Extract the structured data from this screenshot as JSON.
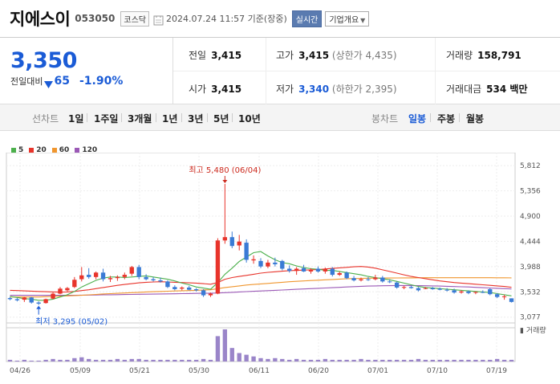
{
  "header": {
    "stock_name": "지에스이",
    "stock_code": "053050",
    "market": "코스닥",
    "timestamp": "2024.07.24 11:57 기준(장중)",
    "realtime_label": "실시간",
    "company_label": "기업개요"
  },
  "price": {
    "current": "3,350",
    "change_label": "전일대비",
    "change_value": "65",
    "change_pct": "-1.90%"
  },
  "stats": {
    "prev_close_label": "전일",
    "prev_close": "3,415",
    "high_label": "고가",
    "high": "3,415",
    "upper_limit": "(상한가 4,435)",
    "volume_label": "거래량",
    "volume": "158,791",
    "open_label": "시가",
    "open": "3,415",
    "low_label": "저가",
    "low": "3,340",
    "lower_limit": "(하한가 2,395)",
    "amount_label": "거래대금",
    "amount": "534 백만"
  },
  "periods": {
    "line_label": "선차트",
    "items": [
      "1일",
      "1주일",
      "3개월",
      "1년",
      "3년",
      "5년",
      "10년"
    ],
    "candle_label": "봉차트",
    "candle_items": [
      "일봉",
      "주봉",
      "월봉"
    ],
    "active_candle": "일봉"
  },
  "colors": {
    "up": "#e8342b",
    "down": "#3a7bd5",
    "ma5": "#4cb04c",
    "ma20": "#e8342b",
    "ma60": "#f0962e",
    "ma120": "#9b59b6"
  },
  "legend": [
    "5",
    "20",
    "60",
    "120"
  ],
  "chart_data": {
    "type": "candlestick",
    "x_ticks": [
      "04/26",
      "05/09",
      "05/21",
      "05/30",
      "06/11",
      "06/20",
      "07/01",
      "07/10",
      "07/19"
    ],
    "y_ticks": [
      "5,812",
      "5,356",
      "4,900",
      "4,444",
      "3,988",
      "3,532",
      "3,077"
    ],
    "ylim": [
      3000,
      5900
    ],
    "annotations": {
      "high": "최고 5,480 (06/04)",
      "low": "최저 3,295 (05/02)"
    },
    "volume_label": "거래량",
    "candles": [
      {
        "o": 3420,
        "h": 3440,
        "l": 3380,
        "c": 3400
      },
      {
        "o": 3400,
        "h": 3420,
        "l": 3360,
        "c": 3380
      },
      {
        "o": 3390,
        "h": 3440,
        "l": 3350,
        "c": 3430
      },
      {
        "o": 3430,
        "h": 3440,
        "l": 3320,
        "c": 3340
      },
      {
        "o": 3340,
        "h": 3360,
        "l": 3295,
        "c": 3320
      },
      {
        "o": 3330,
        "h": 3410,
        "l": 3320,
        "c": 3400
      },
      {
        "o": 3410,
        "h": 3520,
        "l": 3400,
        "c": 3500
      },
      {
        "o": 3500,
        "h": 3620,
        "l": 3490,
        "c": 3590
      },
      {
        "o": 3560,
        "h": 3620,
        "l": 3540,
        "c": 3600
      },
      {
        "o": 3620,
        "h": 3800,
        "l": 3600,
        "c": 3750
      },
      {
        "o": 3760,
        "h": 3980,
        "l": 3720,
        "c": 3830
      },
      {
        "o": 3840,
        "h": 3960,
        "l": 3770,
        "c": 3800
      },
      {
        "o": 3800,
        "h": 3900,
        "l": 3760,
        "c": 3880
      },
      {
        "o": 3880,
        "h": 3950,
        "l": 3720,
        "c": 3760
      },
      {
        "o": 3760,
        "h": 3820,
        "l": 3710,
        "c": 3780
      },
      {
        "o": 3780,
        "h": 3830,
        "l": 3730,
        "c": 3800
      },
      {
        "o": 3800,
        "h": 3880,
        "l": 3760,
        "c": 3840
      },
      {
        "o": 3860,
        "h": 4000,
        "l": 3820,
        "c": 3980
      },
      {
        "o": 3980,
        "h": 4020,
        "l": 3760,
        "c": 3800
      },
      {
        "o": 3800,
        "h": 3850,
        "l": 3740,
        "c": 3760
      },
      {
        "o": 3760,
        "h": 3800,
        "l": 3720,
        "c": 3740
      },
      {
        "o": 3740,
        "h": 3790,
        "l": 3700,
        "c": 3720
      },
      {
        "o": 3720,
        "h": 3740,
        "l": 3600,
        "c": 3620
      },
      {
        "o": 3620,
        "h": 3650,
        "l": 3560,
        "c": 3580
      },
      {
        "o": 3590,
        "h": 3630,
        "l": 3560,
        "c": 3610
      },
      {
        "o": 3610,
        "h": 3640,
        "l": 3560,
        "c": 3570
      },
      {
        "o": 3580,
        "h": 3600,
        "l": 3540,
        "c": 3560
      },
      {
        "o": 3560,
        "h": 3580,
        "l": 3440,
        "c": 3470
      },
      {
        "o": 3470,
        "h": 3520,
        "l": 3440,
        "c": 3500
      },
      {
        "o": 3500,
        "h": 4500,
        "l": 3490,
        "c": 4460
      },
      {
        "o": 4460,
        "h": 5480,
        "l": 4400,
        "c": 4520
      },
      {
        "o": 4520,
        "h": 4620,
        "l": 4320,
        "c": 4360
      },
      {
        "o": 4370,
        "h": 4560,
        "l": 4280,
        "c": 4440
      },
      {
        "o": 4420,
        "h": 4480,
        "l": 4060,
        "c": 4110
      },
      {
        "o": 4100,
        "h": 4190,
        "l": 4040,
        "c": 4120
      },
      {
        "o": 4090,
        "h": 4140,
        "l": 3960,
        "c": 3990
      },
      {
        "o": 3990,
        "h": 4110,
        "l": 3960,
        "c": 4060
      },
      {
        "o": 4060,
        "h": 4150,
        "l": 3990,
        "c": 4030
      },
      {
        "o": 4090,
        "h": 4110,
        "l": 3920,
        "c": 3950
      },
      {
        "o": 3950,
        "h": 4010,
        "l": 3880,
        "c": 3910
      },
      {
        "o": 3910,
        "h": 3980,
        "l": 3840,
        "c": 3950
      },
      {
        "o": 3960,
        "h": 4020,
        "l": 3890,
        "c": 3900
      },
      {
        "o": 3900,
        "h": 3960,
        "l": 3860,
        "c": 3930
      },
      {
        "o": 3950,
        "h": 3990,
        "l": 3880,
        "c": 3900
      },
      {
        "o": 3900,
        "h": 3970,
        "l": 3860,
        "c": 3950
      },
      {
        "o": 3950,
        "h": 3980,
        "l": 3810,
        "c": 3840
      },
      {
        "o": 3840,
        "h": 3900,
        "l": 3820,
        "c": 3870
      },
      {
        "o": 3880,
        "h": 3900,
        "l": 3760,
        "c": 3780
      },
      {
        "o": 3780,
        "h": 3820,
        "l": 3720,
        "c": 3740
      },
      {
        "o": 3740,
        "h": 3790,
        "l": 3720,
        "c": 3760
      },
      {
        "o": 3760,
        "h": 3800,
        "l": 3730,
        "c": 3750
      },
      {
        "o": 3760,
        "h": 3840,
        "l": 3740,
        "c": 3790
      },
      {
        "o": 3790,
        "h": 3820,
        "l": 3700,
        "c": 3720
      },
      {
        "o": 3720,
        "h": 3760,
        "l": 3690,
        "c": 3710
      },
      {
        "o": 3700,
        "h": 3720,
        "l": 3590,
        "c": 3610
      },
      {
        "o": 3610,
        "h": 3640,
        "l": 3580,
        "c": 3620
      },
      {
        "o": 3620,
        "h": 3640,
        "l": 3590,
        "c": 3600
      },
      {
        "o": 3600,
        "h": 3620,
        "l": 3540,
        "c": 3560
      },
      {
        "o": 3590,
        "h": 3620,
        "l": 3580,
        "c": 3600
      },
      {
        "o": 3600,
        "h": 3620,
        "l": 3570,
        "c": 3580
      },
      {
        "o": 3590,
        "h": 3610,
        "l": 3560,
        "c": 3570
      },
      {
        "o": 3570,
        "h": 3600,
        "l": 3540,
        "c": 3560
      },
      {
        "o": 3560,
        "h": 3590,
        "l": 3500,
        "c": 3520
      },
      {
        "o": 3520,
        "h": 3560,
        "l": 3500,
        "c": 3540
      },
      {
        "o": 3540,
        "h": 3560,
        "l": 3490,
        "c": 3510
      },
      {
        "o": 3520,
        "h": 3540,
        "l": 3490,
        "c": 3530
      },
      {
        "o": 3530,
        "h": 3560,
        "l": 3510,
        "c": 3520
      },
      {
        "o": 3580,
        "h": 3600,
        "l": 3470,
        "c": 3490
      },
      {
        "o": 3490,
        "h": 3510,
        "l": 3420,
        "c": 3440
      },
      {
        "o": 3440,
        "h": 3480,
        "l": 3390,
        "c": 3450
      },
      {
        "o": 3415,
        "h": 3415,
        "l": 3340,
        "c": 3350
      }
    ],
    "volumes": [
      2,
      1,
      2,
      1,
      1,
      2,
      3,
      2,
      2,
      4,
      5,
      3,
      2,
      2,
      2,
      3,
      2,
      3,
      3,
      2,
      2,
      2,
      2,
      2,
      2,
      2,
      2,
      3,
      2,
      30,
      38,
      16,
      10,
      8,
      6,
      4,
      3,
      4,
      3,
      2,
      3,
      2,
      2,
      2,
      3,
      2,
      2,
      2,
      2,
      3,
      2,
      2,
      2,
      2,
      2,
      2,
      2,
      3,
      2,
      2,
      2,
      2,
      2,
      2,
      2,
      2,
      2,
      2,
      3,
      2,
      2
    ],
    "ma5": [
      3450,
      3430,
      3410,
      3400,
      3380,
      3380,
      3400,
      3440,
      3480,
      3540,
      3620,
      3680,
      3740,
      3780,
      3800,
      3800,
      3790,
      3800,
      3810,
      3820,
      3800,
      3780,
      3760,
      3730,
      3690,
      3660,
      3620,
      3600,
      3580,
      3700,
      3850,
      3960,
      4080,
      4160,
      4240,
      4260,
      4180,
      4110,
      4060,
      4040,
      4000,
      3970,
      3950,
      3940,
      3920,
      3920,
      3900,
      3880,
      3860,
      3840,
      3810,
      3790,
      3770,
      3750,
      3720,
      3690,
      3660,
      3630,
      3610,
      3600,
      3590,
      3580,
      3570,
      3560,
      3550,
      3540,
      3530,
      3520,
      3500,
      3480,
      3460
    ],
    "ma20": [
      3560,
      3555,
      3550,
      3545,
      3540,
      3535,
      3530,
      3528,
      3530,
      3540,
      3555,
      3570,
      3590,
      3610,
      3630,
      3650,
      3665,
      3680,
      3695,
      3705,
      3710,
      3715,
      3710,
      3705,
      3700,
      3695,
      3690,
      3680,
      3670,
      3700,
      3760,
      3790,
      3810,
      3830,
      3850,
      3870,
      3885,
      3895,
      3905,
      3915,
      3920,
      3925,
      3930,
      3935,
      3945,
      3955,
      3965,
      3975,
      3985,
      3990,
      3980,
      3960,
      3930,
      3900,
      3870,
      3840,
      3810,
      3790,
      3770,
      3750,
      3730,
      3715,
      3700,
      3690,
      3680,
      3670,
      3660,
      3650,
      3640,
      3630,
      3615
    ],
    "ma60": [
      3440,
      3440,
      3440,
      3440,
      3440,
      3445,
      3450,
      3455,
      3460,
      3465,
      3470,
      3478,
      3486,
      3494,
      3500,
      3506,
      3512,
      3518,
      3524,
      3530,
      3535,
      3540,
      3544,
      3548,
      3552,
      3556,
      3560,
      3565,
      3570,
      3590,
      3610,
      3625,
      3640,
      3655,
      3665,
      3675,
      3685,
      3695,
      3705,
      3715,
      3722,
      3729,
      3736,
      3743,
      3750,
      3756,
      3762,
      3768,
      3772,
      3776,
      3778,
      3780,
      3781,
      3782,
      3783,
      3784,
      3785,
      3786,
      3787,
      3787,
      3787,
      3787,
      3787,
      3787,
      3787,
      3787,
      3787,
      3787,
      3786,
      3786,
      3785
    ],
    "ma120": [
      3470,
      3470,
      3470,
      3470,
      3470,
      3470,
      3470,
      3470,
      3470,
      3470,
      3472,
      3474,
      3476,
      3478,
      3480,
      3482,
      3484,
      3486,
      3488,
      3490,
      3492,
      3494,
      3496,
      3498,
      3500,
      3502,
      3504,
      3506,
      3508,
      3512,
      3518,
      3524,
      3530,
      3536,
      3542,
      3548,
      3554,
      3560,
      3566,
      3572,
      3578,
      3584,
      3590,
      3596,
      3602,
      3608,
      3614,
      3620,
      3626,
      3632,
      3636,
      3640,
      3642,
      3644,
      3646,
      3646,
      3646,
      3644,
      3642,
      3640,
      3636,
      3632,
      3628,
      3624,
      3620,
      3614,
      3608,
      3602,
      3596,
      3590,
      3584
    ]
  }
}
